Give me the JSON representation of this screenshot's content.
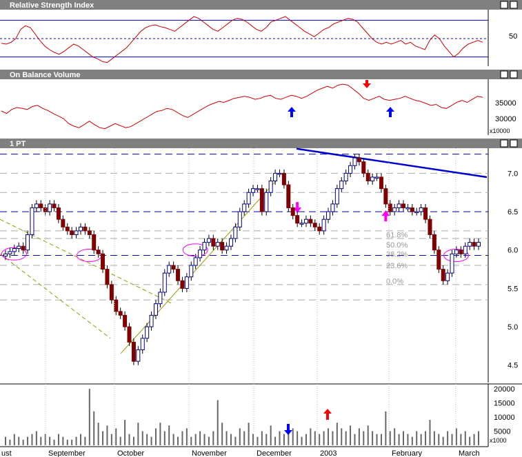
{
  "panels": {
    "rsi": {
      "title": "Relative Strength Index"
    },
    "obv": {
      "title": "On Balance Volume",
      "unit": "x10000"
    },
    "price": {
      "title": "1 PT"
    },
    "volume": {
      "unit": "x1000"
    }
  },
  "colors": {
    "titlebar": "#808080",
    "line": "#cc0000",
    "up": "#00007f",
    "down": "#7f0000",
    "trend": "#0000cc",
    "fib": "#999999",
    "magenta": "#ff00ff",
    "blue_arrow": "#0000ff",
    "red_arrow": "#ff0000"
  },
  "chart_data": [
    {
      "panel": "rsi",
      "type": "line",
      "title": "Relative Strength Index",
      "y_ticks": [
        "50"
      ],
      "reference_lines": [
        30,
        50,
        70
      ],
      "ylim": [
        20,
        80
      ],
      "values": [
        45,
        44,
        46,
        50,
        60,
        64,
        62,
        55,
        48,
        42,
        38,
        35,
        33,
        36,
        40,
        44,
        42,
        38,
        34,
        30,
        28,
        25,
        24,
        28,
        32,
        36,
        40,
        46,
        52,
        58,
        62,
        64,
        65,
        63,
        62,
        60,
        58,
        62,
        66,
        70,
        74,
        72,
        68,
        64,
        60,
        58,
        62,
        66,
        70,
        72,
        71,
        68,
        64,
        60,
        58,
        62,
        68,
        70,
        72,
        74,
        70,
        66,
        62,
        58,
        55,
        52,
        56,
        60,
        62,
        66,
        68,
        70,
        72,
        71,
        68,
        62,
        56,
        50,
        46,
        44,
        46,
        44,
        46,
        48,
        44,
        46,
        42,
        40,
        38,
        48,
        54,
        50,
        42,
        36,
        30,
        34,
        40,
        44,
        46,
        48,
        46
      ]
    },
    {
      "panel": "obv",
      "type": "line",
      "title": "On Balance Volume",
      "unit": "x10000",
      "y_ticks": [
        "35000",
        "30000"
      ],
      "ylim": [
        28000,
        38500
      ],
      "values": [
        32500,
        32000,
        32800,
        33200,
        33000,
        32800,
        33400,
        33600,
        33000,
        32600,
        32000,
        31500,
        31000,
        30000,
        29500,
        29200,
        29800,
        30500,
        29800,
        29200,
        29000,
        29500,
        30000,
        29600,
        29200,
        29400,
        30000,
        30600,
        31200,
        31800,
        32400,
        32600,
        33000,
        32800,
        32200,
        31600,
        31200,
        31800,
        32400,
        33000,
        33600,
        34000,
        34400,
        34200,
        34600,
        35000,
        35200,
        35400,
        35200,
        34800,
        35000,
        35400,
        35600,
        35000,
        34800,
        35200,
        35600,
        35400,
        35000,
        35400,
        36000,
        36600,
        37000,
        37400,
        37000,
        37600,
        37800,
        37600,
        36800,
        36000,
        35000,
        34600,
        35000,
        35400,
        34800,
        34600,
        34800,
        35000,
        35400,
        35000,
        34600,
        34400,
        34000,
        33600,
        33800,
        33200,
        33000,
        33600,
        34200,
        34600,
        34200,
        34800,
        35400,
        35200
      ]
    },
    {
      "panel": "price",
      "type": "candlestick",
      "title": "1 PT",
      "ylim": [
        4.3,
        7.3
      ],
      "y_ticks": [
        "7.0",
        "6.5",
        "6.0",
        "5.5",
        "5.0",
        "4.5"
      ],
      "fib_labels": [
        "61.8%",
        "50.0%",
        "38.2%",
        "23.6%",
        "0.0%"
      ],
      "close": [
        5.95,
        5.98,
        6.02,
        6.05,
        6.0,
        6.2,
        6.55,
        6.6,
        6.55,
        6.5,
        6.6,
        6.55,
        6.4,
        6.3,
        6.25,
        6.2,
        6.25,
        6.3,
        6.25,
        6.2,
        6.0,
        5.95,
        5.75,
        5.55,
        5.35,
        5.2,
        5.15,
        5.0,
        4.8,
        4.55,
        4.7,
        4.85,
        5.0,
        5.15,
        5.3,
        5.45,
        5.7,
        5.8,
        5.75,
        5.6,
        5.5,
        5.65,
        5.8,
        5.9,
        6.0,
        6.1,
        6.15,
        6.05,
        6.1,
        6.0,
        6.05,
        6.15,
        6.3,
        6.5,
        6.6,
        6.75,
        6.8,
        6.8,
        6.5,
        6.75,
        6.9,
        7.0,
        7.0,
        6.85,
        6.55,
        6.45,
        6.35,
        6.35,
        6.4,
        6.35,
        6.3,
        6.25,
        6.4,
        6.5,
        6.6,
        6.8,
        6.9,
        7.0,
        7.1,
        7.2,
        7.15,
        7.0,
        6.9,
        6.95,
        6.95,
        6.8,
        6.6,
        6.5,
        6.55,
        6.6,
        6.55,
        6.55,
        6.5,
        6.5,
        6.55,
        6.4,
        6.2,
        6.0,
        5.75,
        5.6,
        5.7,
        5.95,
        6.0,
        5.95,
        6.05,
        6.1,
        6.05,
        6.1
      ],
      "volume": [
        3,
        2,
        4,
        3,
        2,
        3,
        4,
        5,
        3,
        4,
        3,
        2,
        4,
        3,
        2,
        2,
        3,
        4,
        3,
        20,
        12,
        8,
        5,
        7,
        4,
        6,
        3,
        9,
        4,
        3,
        8,
        5,
        4,
        3,
        6,
        8,
        5,
        7,
        4,
        3,
        5,
        6,
        3,
        4,
        5,
        4,
        3,
        5,
        16,
        8,
        5,
        4,
        3,
        6,
        5,
        8,
        4,
        3,
        5,
        4,
        7,
        3,
        5,
        4,
        4,
        6,
        5,
        3,
        4,
        6,
        5,
        4,
        5,
        6,
        5,
        8,
        6,
        5,
        7,
        4,
        6,
        5,
        7,
        5,
        4,
        4,
        12,
        5,
        6,
        4,
        5,
        4,
        3,
        5,
        4,
        5,
        9,
        5,
        4,
        3,
        5,
        4,
        6,
        4,
        5,
        3,
        4,
        5
      ]
    },
    {
      "panel": "volume",
      "type": "bar",
      "unit": "x1000",
      "y_ticks": [
        "20000",
        "15000",
        "10000",
        "5000"
      ],
      "ylim": [
        0,
        21000
      ],
      "x_labels": [
        "ust",
        "September",
        "October",
        "November",
        "December",
        "2003",
        "February",
        "March"
      ]
    }
  ]
}
